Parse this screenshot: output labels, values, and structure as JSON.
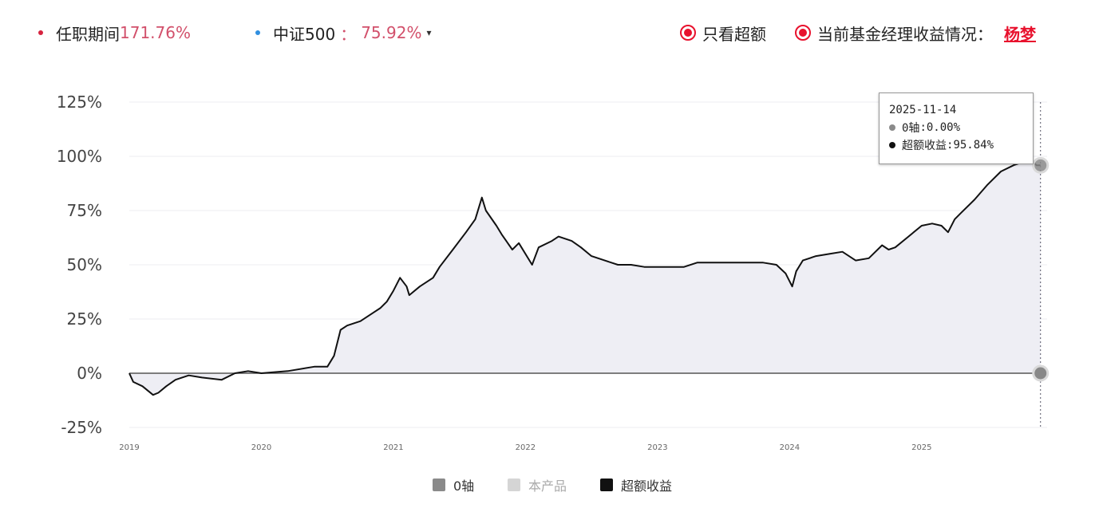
{
  "header": {
    "tenure_label": "任职期间",
    "tenure_value": "171.76%",
    "index_label": "中证500",
    "index_sep": "：",
    "index_value": "75.92%",
    "dropdown_caret": "▾",
    "excess_only_label": "只看超额",
    "current_manager_label": "当前基金经理收益情况：",
    "manager_name": "杨梦"
  },
  "colors": {
    "accent_red": "#e8112d",
    "value_pink": "#d2506b",
    "index_blue": "#2f8fe0",
    "excess_line": "#111111",
    "zero_axis": "#555555",
    "area_fill": "#eeeef4",
    "product_swatch": "#d5d5d5"
  },
  "tooltip": {
    "date": "2025-11-14",
    "zero_label": "0轴",
    "zero_value": "0.00%",
    "excess_label": "超额收益",
    "excess_value": "95.84%"
  },
  "legend": [
    {
      "name": "0轴",
      "color": "#8a8a8a"
    },
    {
      "name": "本产品",
      "color": "#d5d5d5"
    },
    {
      "name": "超额收益",
      "color": "#111111"
    }
  ],
  "chart_data": {
    "type": "area",
    "title": "",
    "xlabel": "",
    "ylabel": "",
    "ylim": [
      -25,
      125
    ],
    "yticks": [
      -25,
      0,
      25,
      50,
      75,
      100,
      125
    ],
    "ytick_labels": [
      "-25%",
      "0%",
      "25%",
      "50%",
      "75%",
      "100%",
      "125%"
    ],
    "x_tick_labels": [
      "2019",
      "2020",
      "2021",
      "2022",
      "2023",
      "2024",
      "2025"
    ],
    "x_tick_values": [
      2019.0,
      2020.0,
      2021.0,
      2022.0,
      2023.0,
      2024.0,
      2025.0
    ],
    "xlim": [
      2019.0,
      2025.95
    ],
    "grid": true,
    "legend_position": "bottom",
    "series": [
      {
        "name": "超额收益",
        "x": [
          2019.0,
          2019.03,
          2019.1,
          2019.18,
          2019.22,
          2019.28,
          2019.35,
          2019.45,
          2019.55,
          2019.7,
          2019.8,
          2019.9,
          2020.0,
          2020.2,
          2020.4,
          2020.5,
          2020.55,
          2020.6,
          2020.65,
          2020.75,
          2020.85,
          2020.9,
          2020.95,
          2021.0,
          2021.05,
          2021.1,
          2021.12,
          2021.2,
          2021.3,
          2021.35,
          2021.45,
          2021.55,
          2021.62,
          2021.67,
          2021.7,
          2021.78,
          2021.82,
          2021.9,
          2021.95,
          2022.05,
          2022.1,
          2022.2,
          2022.25,
          2022.35,
          2022.42,
          2022.5,
          2022.6,
          2022.7,
          2022.8,
          2022.9,
          2023.0,
          2023.2,
          2023.3,
          2023.4,
          2023.6,
          2023.8,
          2023.9,
          2023.97,
          2024.02,
          2024.05,
          2024.1,
          2024.2,
          2024.3,
          2024.4,
          2024.5,
          2024.6,
          2024.7,
          2024.75,
          2024.8,
          2024.9,
          2025.0,
          2025.08,
          2025.15,
          2025.2,
          2025.25,
          2025.3,
          2025.4,
          2025.5,
          2025.6,
          2025.7,
          2025.8,
          2025.85,
          2025.87,
          2025.9
        ],
        "y": [
          0,
          -4,
          -6,
          -10,
          -9,
          -6,
          -3,
          -1,
          -2,
          -3,
          0,
          1,
          0,
          1,
          3,
          3,
          8,
          20,
          22,
          24,
          28,
          30,
          33,
          38,
          44,
          40,
          36,
          40,
          44,
          49,
          57,
          65,
          71,
          81,
          75,
          68,
          64,
          57,
          60,
          50,
          58,
          61,
          63,
          61,
          58,
          54,
          52,
          50,
          50,
          49,
          49,
          49,
          51,
          51,
          51,
          51,
          50,
          46,
          40,
          47,
          52,
          54,
          55,
          56,
          52,
          53,
          59,
          57,
          58,
          63,
          68,
          69,
          68,
          65,
          71,
          74,
          80,
          87,
          93,
          96,
          98,
          97,
          95.84,
          95.84
        ]
      },
      {
        "name": "0轴",
        "x": [
          2019.0,
          2025.9
        ],
        "y": [
          0,
          0
        ]
      }
    ],
    "annotations": [
      {
        "x": 2025.9,
        "y": 95.84,
        "label": "超额收益: 95.84%"
      },
      {
        "x": 2025.9,
        "y": 0,
        "label": "0轴: 0.00%"
      }
    ]
  }
}
